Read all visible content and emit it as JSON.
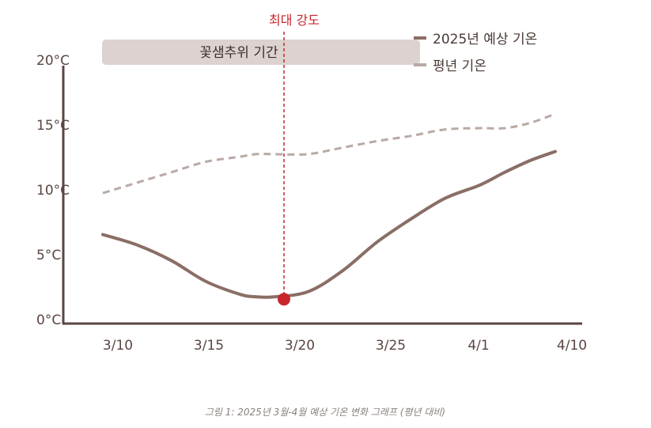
{
  "chart_data": {
    "type": "line",
    "x": [
      "3/10",
      "3/12",
      "3/14",
      "3/16",
      "3/18",
      "3/19",
      "3/20",
      "3/22",
      "3/24",
      "3/26",
      "3/28",
      "3/30",
      "4/1",
      "4/4",
      "4/7",
      "4/10"
    ],
    "xticks": [
      "3/10",
      "3/15",
      "3/20",
      "3/25",
      "4/1",
      "4/10"
    ],
    "yticks": [
      "0°C",
      "5°C",
      "10°C",
      "15°C",
      "20°C"
    ],
    "ylim": [
      0,
      20
    ],
    "series": [
      {
        "name": "2025년 예상 기온",
        "color": "#8a6e66",
        "style": "solid",
        "values": [
          6.8,
          6.0,
          4.8,
          3.2,
          2.2,
          2.0,
          2.0,
          2.4,
          4.0,
          6.2,
          8.0,
          9.6,
          10.6,
          11.6,
          12.5,
          13.2
        ]
      },
      {
        "name": "평년 기온",
        "color": "#b9aaa5",
        "style": "dashed",
        "values": [
          10.0,
          10.8,
          11.6,
          12.4,
          12.8,
          13.0,
          13.0,
          13.0,
          13.5,
          14.0,
          14.4,
          14.9,
          15.0,
          15.0,
          15.4,
          16.1
        ]
      }
    ],
    "band": {
      "label": "꽃샘추위 기간",
      "from": "3/10",
      "to": "3/25"
    },
    "peak": {
      "label": "최대 강도",
      "x": "3/19",
      "y": 2.0,
      "color": "#c8262c"
    },
    "legend_position": "top-right",
    "caption": "그림 1: 2025년 3월-4월 예상 기온 변화 그래프 (평년 대비)"
  }
}
